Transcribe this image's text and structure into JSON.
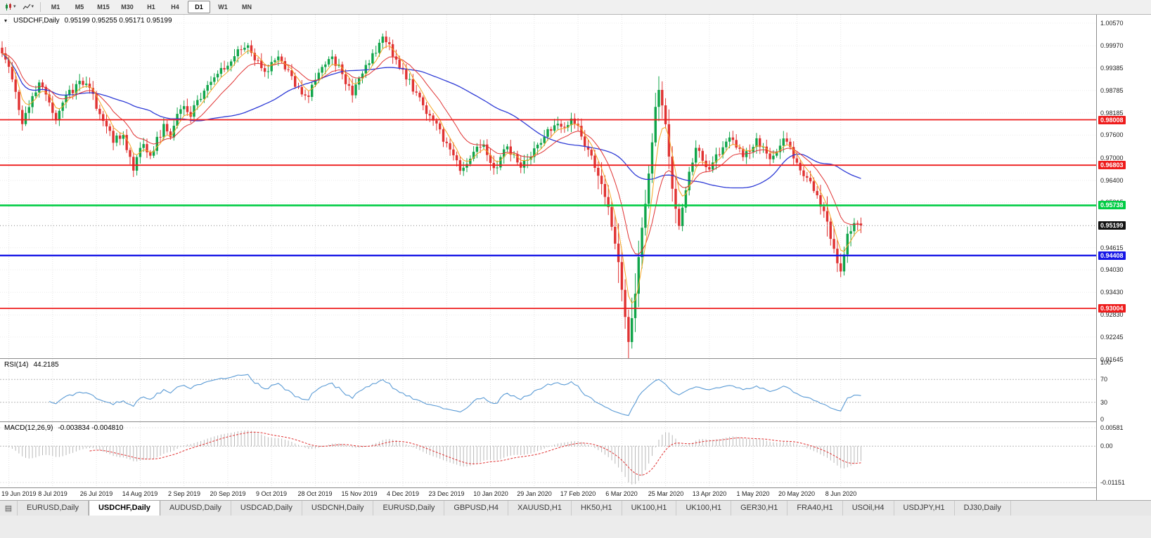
{
  "icons": {
    "dropdown_caret": "▾",
    "chart_menu": "▾",
    "tab_list": "▤"
  },
  "colors": {
    "candle_up": "#10a54a",
    "candle_down": "#e03232",
    "ma_fast": "#f5a623",
    "ma_mid": "#e03232",
    "ma_slow": "#2e3bd6",
    "rsi": "#5b9bd5",
    "macd_hist": "#b9b9b9",
    "macd_signal": "#e03232",
    "current_price_badge": "#111111"
  },
  "toolbar": {
    "timeframes": [
      {
        "label": "M1",
        "active": false
      },
      {
        "label": "M5",
        "active": false
      },
      {
        "label": "M15",
        "active": false
      },
      {
        "label": "M30",
        "active": false
      },
      {
        "label": "H1",
        "active": false
      },
      {
        "label": "H4",
        "active": false
      },
      {
        "label": "D1",
        "active": true
      },
      {
        "label": "W1",
        "active": false
      },
      {
        "label": "MN",
        "active": false
      }
    ]
  },
  "chart_data": {
    "type": "candlestick",
    "symbol_label": "USDCHF,Daily",
    "main": {
      "ohlc_label": "0.95199 0.95255 0.95171 0.95199",
      "open": 0.95199,
      "high": 0.95255,
      "low": 0.95171,
      "close": 0.95199,
      "y_ticks": [
        "1.00570",
        "0.99970",
        "0.99385",
        "0.98785",
        "0.98185",
        "0.97600",
        "0.97000",
        "0.96400",
        "0.95815",
        "0.94615",
        "0.94030",
        "0.93430",
        "0.92830",
        "0.92245",
        "0.91645"
      ],
      "levels": [
        {
          "price": 0.98008,
          "color": "#ee1c1c",
          "width": 1.8
        },
        {
          "price": 0.96803,
          "color": "#ee1c1c",
          "width": 1.8
        },
        {
          "price": 0.95738,
          "color": "#00cc44",
          "width": 2.6
        },
        {
          "price": 0.94408,
          "color": "#1515e6",
          "width": 2.4
        },
        {
          "price": 0.93004,
          "color": "#ee1c1c",
          "width": 1.8
        }
      ],
      "n_candles": 256,
      "price_anchors": [
        [
          0,
          0.9985
        ],
        [
          2,
          0.9935
        ],
        [
          4,
          0.9875
        ],
        [
          6,
          0.98
        ],
        [
          8,
          0.9845
        ],
        [
          11,
          0.9893
        ],
        [
          13,
          0.9862
        ],
        [
          16,
          0.9807
        ],
        [
          19,
          0.9858
        ],
        [
          23,
          0.9905
        ],
        [
          26,
          0.9882
        ],
        [
          29,
          0.982
        ],
        [
          31,
          0.9775
        ],
        [
          33,
          0.9748
        ],
        [
          36,
          0.9762
        ],
        [
          38,
          0.9698
        ],
        [
          39,
          0.9668
        ],
        [
          40,
          0.97
        ],
        [
          42,
          0.9738
        ],
        [
          44,
          0.9706
        ],
        [
          46,
          0.9748
        ],
        [
          48,
          0.9782
        ],
        [
          50,
          0.9765
        ],
        [
          52,
          0.9808
        ],
        [
          54,
          0.9838
        ],
        [
          56,
          0.9812
        ],
        [
          58,
          0.985
        ],
        [
          60,
          0.9872
        ],
        [
          63,
          0.9908
        ],
        [
          66,
          0.994
        ],
        [
          69,
          0.9972
        ],
        [
          72,
          1.0002
        ],
        [
          74,
          0.9982
        ],
        [
          76,
          0.995
        ],
        [
          78,
          0.9922
        ],
        [
          80,
          0.9952
        ],
        [
          82,
          0.9976
        ],
        [
          84,
          0.9945
        ],
        [
          86,
          0.9912
        ],
        [
          88,
          0.9882
        ],
        [
          90,
          0.9858
        ],
        [
          92,
          0.9886
        ],
        [
          94,
          0.992
        ],
        [
          96,
          0.995
        ],
        [
          98,
          0.9968
        ],
        [
          100,
          0.9938
        ],
        [
          102,
          0.9906
        ],
        [
          104,
          0.9872
        ],
        [
          106,
          0.99
        ],
        [
          108,
          0.9938
        ],
        [
          110,
          0.9972
        ],
        [
          113,
          1.0012
        ],
        [
          115,
          0.9995
        ],
        [
          117,
          0.9962
        ],
        [
          119,
          0.993
        ],
        [
          121,
          0.9898
        ],
        [
          123,
          0.9868
        ],
        [
          125,
          0.984
        ],
        [
          127,
          0.9812
        ],
        [
          129,
          0.9785
        ],
        [
          131,
          0.9752
        ],
        [
          133,
          0.9725
        ],
        [
          135,
          0.969
        ],
        [
          136,
          0.9662
        ],
        [
          138,
          0.969
        ],
        [
          140,
          0.9715
        ],
        [
          142,
          0.9738
        ],
        [
          144,
          0.9712
        ],
        [
          146,
          0.9668
        ],
        [
          148,
          0.97
        ],
        [
          150,
          0.9726
        ],
        [
          152,
          0.9702
        ],
        [
          154,
          0.9678
        ],
        [
          156,
          0.97
        ],
        [
          158,
          0.9722
        ],
        [
          160,
          0.9745
        ],
        [
          162,
          0.9768
        ],
        [
          164,
          0.979
        ],
        [
          166,
          0.9772
        ],
        [
          168,
          0.9792
        ],
        [
          170,
          0.98
        ],
        [
          172,
          0.976
        ],
        [
          174,
          0.972
        ],
        [
          176,
          0.968
        ],
        [
          178,
          0.964
        ],
        [
          180,
          0.956
        ],
        [
          182,
          0.9475
        ],
        [
          184,
          0.936
        ],
        [
          186,
          0.9205
        ],
        [
          188,
          0.935
        ],
        [
          190,
          0.9505
        ],
        [
          192,
          0.965
        ],
        [
          193,
          0.974
        ],
        [
          194,
          0.983
        ],
        [
          195,
          0.9888
        ],
        [
          196,
          0.9845
        ],
        [
          197,
          0.978
        ],
        [
          198,
          0.97
        ],
        [
          199,
          0.962
        ],
        [
          201,
          0.9528
        ],
        [
          202,
          0.9572
        ],
        [
          204,
          0.9668
        ],
        [
          206,
          0.9722
        ],
        [
          208,
          0.97
        ],
        [
          210,
          0.9668
        ],
        [
          212,
          0.97
        ],
        [
          214,
          0.973
        ],
        [
          216,
          0.9755
        ],
        [
          218,
          0.9728
        ],
        [
          220,
          0.97
        ],
        [
          222,
          0.9726
        ],
        [
          224,
          0.9752
        ],
        [
          226,
          0.9724
        ],
        [
          228,
          0.9698
        ],
        [
          230,
          0.9722
        ],
        [
          232,
          0.9748
        ],
        [
          234,
          0.9718
        ],
        [
          236,
          0.9688
        ],
        [
          238,
          0.9658
        ],
        [
          240,
          0.9628
        ],
        [
          242,
          0.9592
        ],
        [
          244,
          0.955
        ],
        [
          246,
          0.9495
        ],
        [
          247,
          0.9462
        ],
        [
          248,
          0.9425
        ],
        [
          249,
          0.9398
        ],
        [
          250,
          0.9452
        ],
        [
          251,
          0.9495
        ],
        [
          252,
          0.9512
        ],
        [
          253,
          0.9523
        ],
        [
          255,
          0.95199
        ]
      ]
    },
    "rsi": {
      "name": "RSI(14)",
      "current": "44.2185",
      "ticks": [
        100,
        70,
        30,
        0
      ],
      "levels": [
        70,
        30
      ]
    },
    "macd": {
      "name": "MACD(12,26,9)",
      "current": "-0.003834 -0.004810",
      "ticks": [
        {
          "label": "0.00581",
          "value": 0.00581
        },
        {
          "label": "0.00",
          "value": 0
        },
        {
          "label": "-0.01151",
          "value": -0.01151
        }
      ]
    },
    "x_labels": [
      "19 Jun 2019",
      "8 Jul 2019",
      "26 Jul 2019",
      "14 Aug 2019",
      "2 Sep 2019",
      "20 Sep 2019",
      "9 Oct 2019",
      "28 Oct 2019",
      "15 Nov 2019",
      "4 Dec 2019",
      "23 Dec 2019",
      "10 Jan 2020",
      "29 Jan 2020",
      "17 Feb 2020",
      "6 Mar 2020",
      "25 Mar 2020",
      "13 Apr 2020",
      "1 May 2020",
      "20 May 2020",
      "8 Jun 2020"
    ]
  },
  "tabs": {
    "items": [
      {
        "label": "EURUSD,Daily",
        "active": false
      },
      {
        "label": "USDCHF,Daily",
        "active": true
      },
      {
        "label": "AUDUSD,Daily",
        "active": false
      },
      {
        "label": "USDCAD,Daily",
        "active": false
      },
      {
        "label": "USDCNH,Daily",
        "active": false
      },
      {
        "label": "EURUSD,Daily",
        "active": false
      },
      {
        "label": "GBPUSD,H4",
        "active": false
      },
      {
        "label": "XAUUSD,H1",
        "active": false
      },
      {
        "label": "HK50,H1",
        "active": false
      },
      {
        "label": "UK100,H1",
        "active": false
      },
      {
        "label": "UK100,H1",
        "active": false
      },
      {
        "label": "GER30,H1",
        "active": false
      },
      {
        "label": "FRA40,H1",
        "active": false
      },
      {
        "label": "USOil,H4",
        "active": false
      },
      {
        "label": "USDJPY,H1",
        "active": false
      },
      {
        "label": "DJ30,Daily",
        "active": false
      }
    ]
  }
}
